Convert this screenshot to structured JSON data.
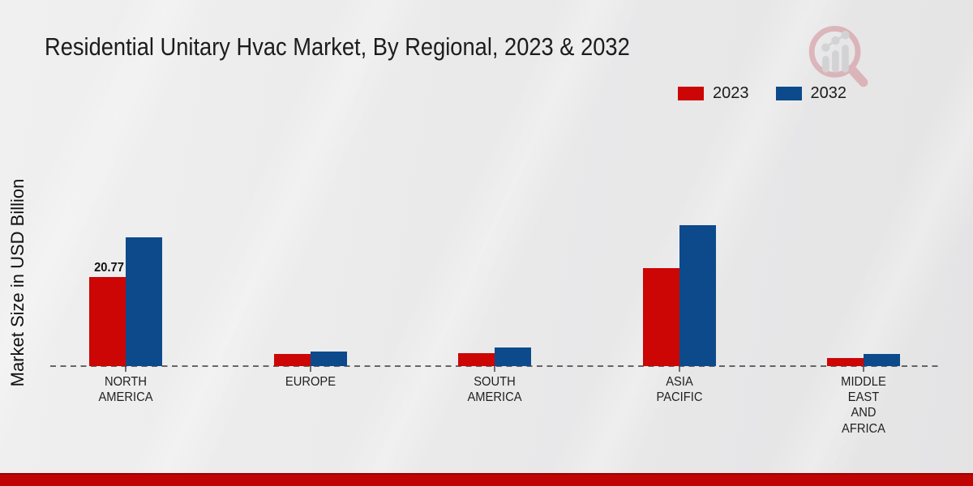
{
  "chart_data": {
    "type": "bar",
    "title": "Residential Unitary Hvac Market, By Regional, 2023 & 2032",
    "ylabel": "Market Size in USD Billion",
    "categories": [
      "North America",
      "Europe",
      "South America",
      "Asia Pacific",
      "Middle East and Africa"
    ],
    "categories_display": [
      "NORTH\nAMERICA",
      "EUROPE",
      "SOUTH\nAMERICA",
      "ASIA\nPACIFIC",
      "MIDDLE\nEAST\nAND\nAFRICA"
    ],
    "series": [
      {
        "name": "2023",
        "color": "#cc0605",
        "values": [
          20.77,
          2.8,
          3.0,
          22.8,
          1.9
        ],
        "value_labels": [
          "20.77",
          null,
          null,
          null,
          null
        ]
      },
      {
        "name": "2032",
        "color": "#0c4a8c",
        "values": [
          30.0,
          3.4,
          4.3,
          32.9,
          2.8
        ],
        "value_labels": [
          null,
          null,
          null,
          null,
          null
        ]
      }
    ],
    "ylim": [
      0,
      35
    ],
    "grid": false,
    "legend_position": "top-right",
    "baseline_style": "dashed",
    "annotations": [
      "20.77"
    ]
  },
  "branding": {
    "logo_icon": "magnifier-bar-chart-logo",
    "footer_band_color": "#c00404",
    "logo_ring_color": "#d18d94",
    "logo_bar_color": "#c2c3c7"
  }
}
